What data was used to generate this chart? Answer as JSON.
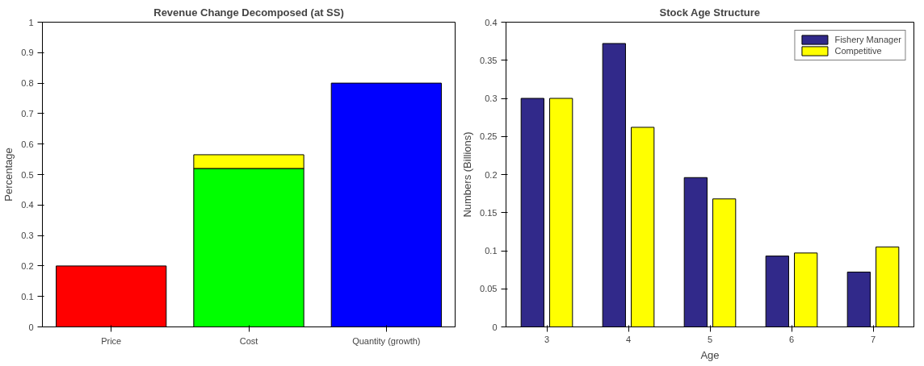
{
  "chart_data": [
    {
      "type": "bar",
      "title": "Revenue Change Decomposed (at SS)",
      "ylabel": "Percentage",
      "categories": [
        "Price",
        "Cost",
        "Quantity (growth)"
      ],
      "stacked": true,
      "series": [
        {
          "colors": [
            "#ff0000",
            "#00ff00",
            "#0000ff"
          ],
          "values": [
            0.2,
            0.52,
            0.8
          ]
        },
        {
          "color": "#ffff00",
          "values": [
            null,
            0.045,
            null
          ]
        }
      ],
      "ylim": [
        0,
        1
      ],
      "yticks": [
        0,
        0.1,
        0.2,
        0.3,
        0.4,
        0.5,
        0.6,
        0.7,
        0.8,
        0.9,
        1
      ],
      "grid": false,
      "legend": false
    },
    {
      "type": "bar",
      "title": "Stock Age Structure",
      "xlabel": "Age",
      "ylabel": "Numbers (Billions)",
      "categories": [
        "3",
        "4",
        "5",
        "6",
        "7"
      ],
      "series": [
        {
          "name": "Fishery Manager",
          "color": "#31298a",
          "values": [
            0.3,
            0.372,
            0.196,
            0.093,
            0.072
          ]
        },
        {
          "name": "Competitive",
          "color": "#ffff00",
          "values": [
            0.3,
            0.262,
            0.168,
            0.097,
            0.105
          ]
        }
      ],
      "ylim": [
        0,
        0.4
      ],
      "yticks": [
        0,
        0.05,
        0.1,
        0.15,
        0.2,
        0.25,
        0.3,
        0.35,
        0.4
      ],
      "grid": false,
      "legend": "top right"
    }
  ]
}
